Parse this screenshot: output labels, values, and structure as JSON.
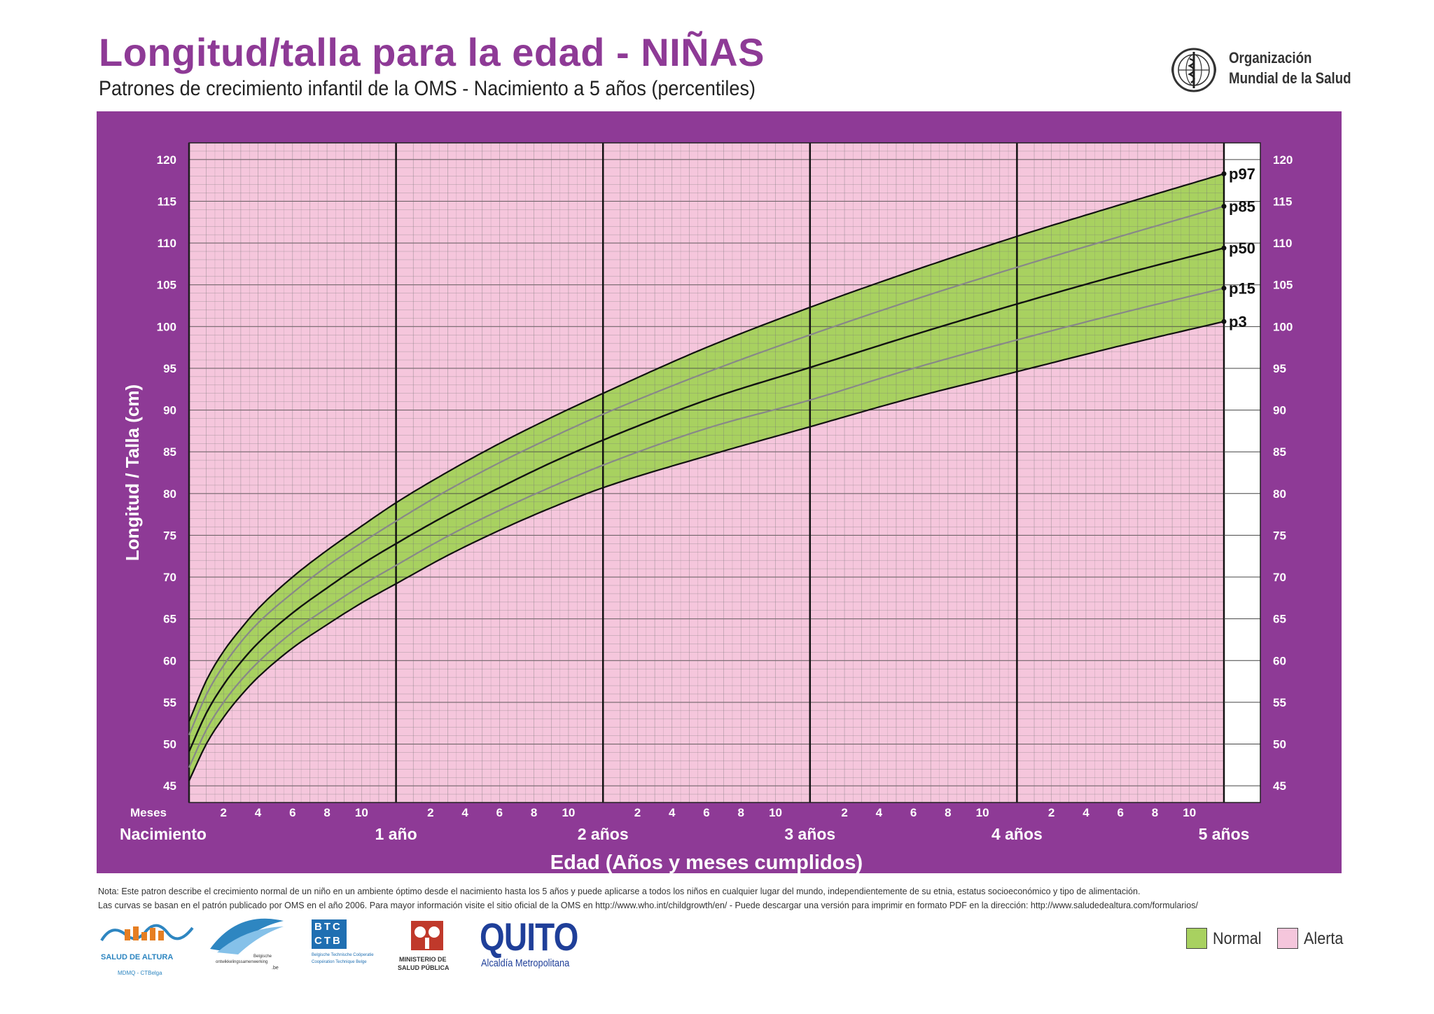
{
  "header": {
    "title": "Longitud/talla para la edad - NIÑAS",
    "subtitle": "Patrones de crecimiento infantil de la OMS - Nacimiento a 5 años (percentiles)"
  },
  "who_logo": {
    "line1": "Organización",
    "line2": "Mundial de la Salud",
    "icon": "who-emblem-icon"
  },
  "chart_data": {
    "type": "area",
    "title": "",
    "ylabel": "Longitud / Talla (cm)",
    "xlabel": "Edad (Años y meses cumplidos)",
    "months_label": "Meses",
    "xlim": [
      0,
      60
    ],
    "ylim": [
      43,
      122
    ],
    "y_ticks": [
      45,
      50,
      55,
      60,
      65,
      70,
      75,
      80,
      85,
      90,
      95,
      100,
      105,
      110,
      115,
      120
    ],
    "month_tick_labels": [
      "2",
      "4",
      "6",
      "8",
      "10"
    ],
    "year_labels": [
      {
        "month": 0,
        "label": "Nacimiento"
      },
      {
        "month": 12,
        "label": "1 año"
      },
      {
        "month": 24,
        "label": "2 años"
      },
      {
        "month": 36,
        "label": "3 años"
      },
      {
        "month": 48,
        "label": "4 años"
      },
      {
        "month": 60,
        "label": "5 años"
      }
    ],
    "age_months": [
      0,
      1,
      2,
      3,
      4,
      6,
      8,
      10,
      12,
      15,
      18,
      21,
      24,
      30,
      36,
      42,
      48,
      54,
      60
    ],
    "series": [
      {
        "name": "p97",
        "values": [
          52.7,
          57.6,
          61.1,
          63.8,
          66.2,
          70.0,
          73.2,
          76.1,
          78.9,
          82.6,
          86.0,
          89.1,
          92.0,
          97.5,
          102.3,
          106.7,
          110.8,
          114.6,
          118.3
        ]
      },
      {
        "name": "p85",
        "values": [
          51.1,
          55.9,
          59.4,
          62.2,
          64.5,
          68.1,
          71.3,
          74.1,
          76.7,
          80.4,
          83.7,
          86.7,
          89.5,
          94.5,
          99.0,
          103.2,
          107.1,
          110.8,
          114.4
        ]
      },
      {
        "name": "p50",
        "values": [
          49.1,
          53.7,
          57.1,
          59.8,
          62.1,
          65.7,
          68.7,
          71.5,
          74.0,
          77.5,
          80.7,
          83.7,
          86.4,
          91.2,
          95.1,
          99.0,
          102.7,
          106.2,
          109.4
        ]
      },
      {
        "name": "p15",
        "values": [
          47.2,
          51.7,
          55.0,
          57.6,
          59.8,
          63.4,
          66.3,
          69.0,
          71.4,
          74.9,
          78.0,
          80.8,
          83.4,
          87.8,
          91.2,
          95.0,
          98.4,
          101.6,
          104.6
        ]
      },
      {
        "name": "p3",
        "values": [
          45.6,
          50.0,
          53.2,
          55.8,
          58.0,
          61.5,
          64.3,
          66.9,
          69.2,
          72.6,
          75.6,
          78.3,
          80.7,
          84.5,
          88.0,
          91.5,
          94.6,
          97.7,
          100.6
        ]
      }
    ],
    "band_fill": "#a8d160",
    "alert_fill": "#f5c6dc",
    "panel_color": "#8e3a96",
    "grid": true
  },
  "note": {
    "line1": "Nota: Este patron describe el crecimiento normal de un niño en un ambiente óptimo desde el nacimiento hasta los 5 años y puede aplicarse a todos los niños en cualquier lugar del mundo, independientemente de su etnia, estatus socioeconómico y tipo de alimentación.",
    "line2": "Las curvas se basan en el patrón publicado por OMS en el año 2006. Para mayor información visite el sitio oficial de la OMS en http://www.who.int/childgrowth/en/ - Puede descargar una versión para imprimir en formato PDF en la dirección: http://www.saludedealtura.com/formularios/"
  },
  "logos": {
    "salud_altura": {
      "name": "SALUD DE ALTURA",
      "sub": "MDMQ - CTBelga",
      "icon": "salud-de-altura-logo-icon"
    },
    "belgische": {
      "text1": "Belgische",
      "text2": "ontwikkelingssamenwerking",
      "text3": ".be",
      "icon": "belgium-cooperation-logo-icon"
    },
    "btc": {
      "top": "BTC",
      "bottom": "CTB",
      "text1": "Belgische Technische Coöperatie",
      "text2": "Coopération Technique Belge",
      "icon": "btc-ctb-logo-icon"
    },
    "msp": {
      "line1": "MINISTERIO DE",
      "line2": "SALUD PÚBLICA",
      "icon": "msp-logo-icon"
    },
    "quito": {
      "name": "QUITO",
      "sub": "Alcaldía Metropolitana",
      "icon": "quito-logo-icon"
    }
  },
  "legend": {
    "normal": {
      "label": "Normal",
      "color": "#a8d160"
    },
    "alerta": {
      "label": "Alerta",
      "color": "#f5c6dc"
    }
  }
}
